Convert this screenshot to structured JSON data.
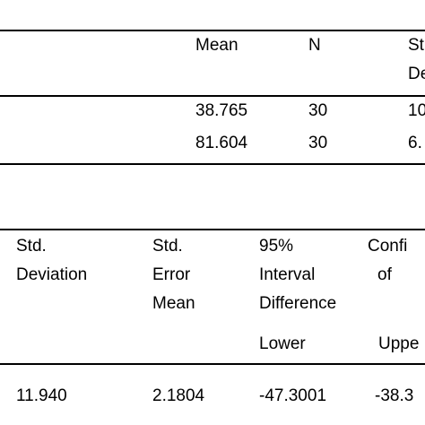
{
  "table1": {
    "header": [
      [
        "Mean"
      ],
      [
        "N"
      ],
      [
        "St",
        "De"
      ]
    ],
    "rows": [
      [
        "38.765",
        "30",
        "10"
      ],
      [
        "81.604",
        "30",
        "6."
      ]
    ]
  },
  "table2": {
    "header": [
      [
        "Std.",
        "Deviation"
      ],
      [
        "Std.",
        "Error",
        "Mean"
      ],
      [
        "95%",
        "Interval",
        "Difference"
      ],
      [
        "Confi",
        "of"
      ]
    ],
    "subheader": [
      "Lower",
      "Uppe"
    ],
    "rows": [
      [
        "11.940",
        "2.1804",
        "-47.3001",
        "-38.3"
      ]
    ]
  }
}
